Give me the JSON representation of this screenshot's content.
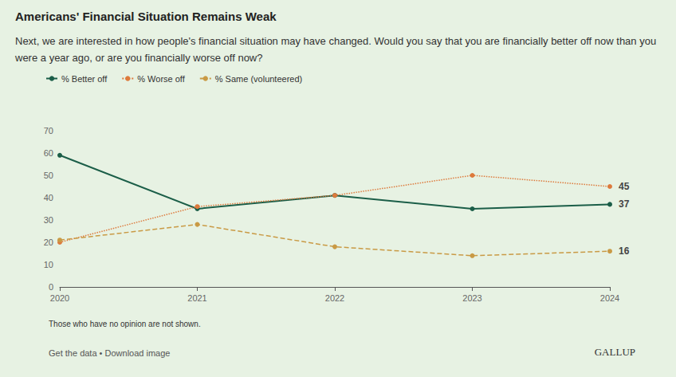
{
  "chart_data": {
    "type": "line",
    "title": "Americans' Financial Situation Remains Weak",
    "subtitle": "Next, we are interested in how people's financial situation may have changed. Would you say that you are financially better off now than you were a year ago, or are you financially worse off now?",
    "note": "Those who have no opinion are not shown.",
    "source_line": "Get the data • Download image",
    "brand": "GALLUP",
    "categories": [
      "2020",
      "2021",
      "2022",
      "2023",
      "2024"
    ],
    "series": [
      {
        "name": "% Better off",
        "color": "#1b5e48",
        "line_style": "solid",
        "marker": "circle",
        "values": [
          59,
          35,
          41,
          35,
          37
        ],
        "value_labels": [
          null,
          null,
          null,
          null,
          "37"
        ]
      },
      {
        "name": "% Worse off",
        "color": "#dd7a3c",
        "line_style": "dotted",
        "marker": "circle",
        "values": [
          20,
          36,
          41,
          50,
          45
        ],
        "value_labels": [
          null,
          null,
          null,
          null,
          "45"
        ]
      },
      {
        "name": "% Same (volunteered)",
        "color": "#c99a45",
        "line_style": "dashed",
        "marker": "circle",
        "values": [
          21,
          28,
          18,
          14,
          16
        ],
        "value_labels": [
          null,
          null,
          null,
          null,
          "16"
        ]
      }
    ],
    "ylim": [
      0,
      70
    ],
    "yticks": [
      0,
      10,
      20,
      30,
      40,
      50,
      60,
      70
    ],
    "grid": false,
    "legend": "top-left",
    "data_labels": true
  }
}
